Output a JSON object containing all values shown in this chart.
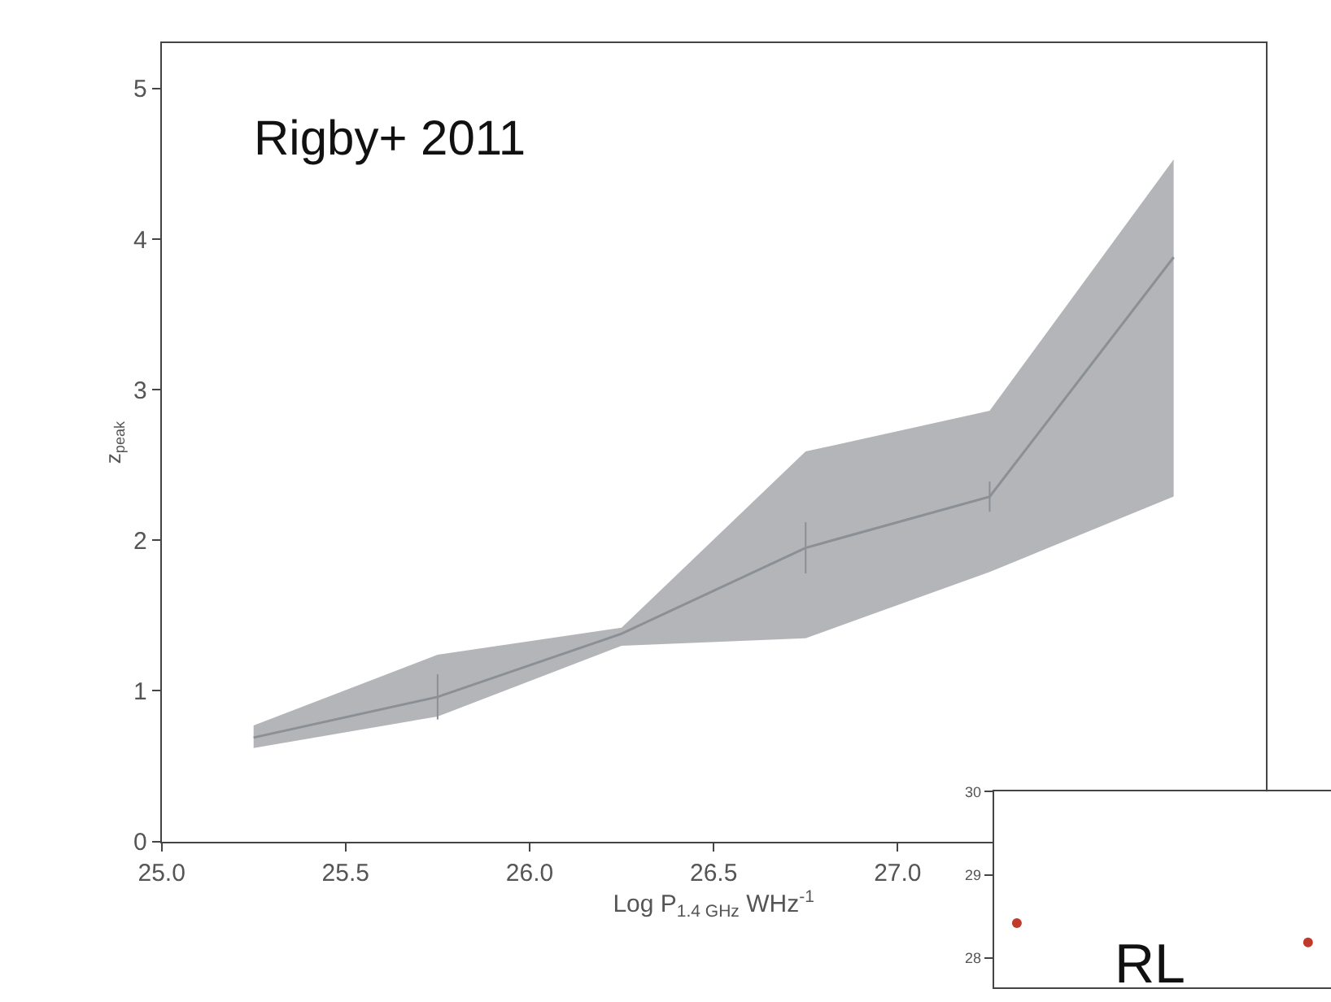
{
  "chart_data": [
    {
      "type": "line",
      "xlabel": "Log P$_{1.4 GHz}$ WHz$^{-1}$",
      "ylabel": "z$_{peak}$",
      "annotations": [
        "Rigby+ 2011"
      ],
      "x": [
        25.25,
        25.75,
        26.25,
        26.75,
        27.25,
        27.75
      ],
      "series": [
        {
          "color": "#8a9096",
          "values": [
            0.69,
            0.96,
            1.38,
            1.95,
            2.29,
            3.88
          ],
          "lower": [
            0.62,
            0.83,
            1.3,
            1.35,
            1.79,
            2.29
          ],
          "upper": [
            0.77,
            1.24,
            1.42,
            2.59,
            2.86,
            4.53
          ],
          "errors": [
            null,
            0.15,
            null,
            0.17,
            0.1,
            null
          ]
        }
      ],
      "xlim": [
        25.0,
        28.0
      ],
      "xticks": [
        {
          "value": 25.0,
          "label": "25.0"
        },
        25.5,
        {
          "value": 26.0,
          "label": "26.0"
        },
        26.5,
        {
          "value": 27.0,
          "label": "27.0"
        }
      ],
      "ylim": [
        0,
        5.3
      ],
      "yticks": [
        0,
        1,
        2,
        3,
        4,
        5
      ],
      "marker": "none"
    },
    {
      "type": "scatter",
      "annotations": [
        "RL"
      ],
      "categories": [
        null,
        null
      ],
      "series": [
        {
          "color": "#c0392b",
          "values": [
            28.42,
            28.19
          ]
        }
      ],
      "ylim": [
        27.65,
        30
      ],
      "yticks": [
        28,
        29,
        30
      ],
      "tick_labels": "y",
      "marker": "circle"
    }
  ]
}
